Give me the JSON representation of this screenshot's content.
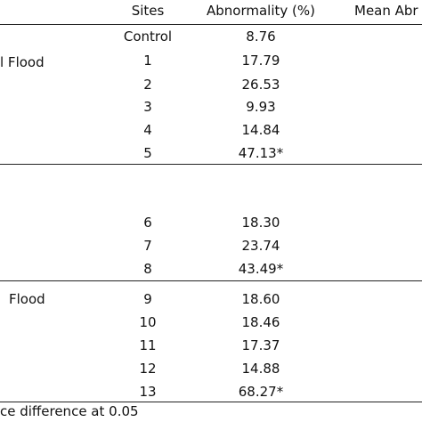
{
  "header": {
    "sites": "Sites",
    "abnormality": "Abnormality (%)",
    "mean_abnormality": "Mean Abr"
  },
  "groups": [
    {
      "label": "l Flood",
      "rows": [
        {
          "site": "Control",
          "value": "8.76"
        },
        {
          "site": "1",
          "value": "17.79"
        },
        {
          "site": "2",
          "value": "26.53"
        },
        {
          "site": "3",
          "value": "9.93"
        },
        {
          "site": "4",
          "value": "14.84"
        },
        {
          "site": "5",
          "value": "47.13*"
        }
      ]
    },
    {
      "label": "",
      "rows": [
        {
          "site": "6",
          "value": "18.30"
        },
        {
          "site": "7",
          "value": "23.74"
        },
        {
          "site": "8",
          "value": "43.49*"
        }
      ]
    },
    {
      "label": "Flood",
      "rows": [
        {
          "site": "9",
          "value": "18.60"
        },
        {
          "site": "10",
          "value": "18.46"
        },
        {
          "site": "11",
          "value": "17.37"
        },
        {
          "site": "12",
          "value": "14.88"
        },
        {
          "site": "13",
          "value": "68.27*"
        }
      ]
    }
  ],
  "footnote": "ce difference at 0.05"
}
